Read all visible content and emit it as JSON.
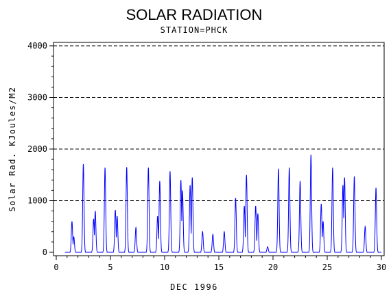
{
  "chart_data": {
    "type": "line",
    "title": "SOLAR RADIATION",
    "subtitle": "STATION=PHCK",
    "xlabel": "DEC 1996",
    "ylabel": "Solar Rad. KJoules/M2",
    "xlim": [
      0,
      30
    ],
    "ylim": [
      0,
      4000
    ],
    "x_ticks": [
      0,
      5,
      10,
      15,
      20,
      25,
      30
    ],
    "x_tick_labels": [
      "0",
      "5",
      "10",
      "15",
      "20",
      "25",
      "30"
    ],
    "y_ticks": [
      0,
      1000,
      2000,
      3000,
      4000
    ],
    "y_tick_labels": [
      "0",
      "1000",
      "2000",
      "3000",
      "4000"
    ],
    "gridlines_y": [
      1000,
      2000,
      3000,
      4000
    ],
    "grid": "dashed horizontal",
    "series": [
      {
        "color": "#0000ff",
        "daily_peaks": [
          {
            "day": 1,
            "peaks": [
              [
                1.45,
                600
              ],
              [
                1.62,
                300
              ]
            ]
          },
          {
            "day": 2,
            "peaks": [
              [
                2.5,
                1710
              ]
            ]
          },
          {
            "day": 3,
            "peaks": [
              [
                3.45,
                650
              ],
              [
                3.6,
                800
              ]
            ]
          },
          {
            "day": 4,
            "peaks": [
              [
                4.5,
                1640
              ]
            ]
          },
          {
            "day": 5,
            "peaks": [
              [
                5.45,
                820
              ],
              [
                5.62,
                700
              ]
            ]
          },
          {
            "day": 6,
            "peaks": [
              [
                6.5,
                1650
              ]
            ]
          },
          {
            "day": 7,
            "peaks": [
              [
                7.35,
                480
              ]
            ]
          },
          {
            "day": 8,
            "peaks": [
              [
                8.5,
                1640
              ]
            ]
          },
          {
            "day": 9,
            "peaks": [
              [
                9.35,
                700
              ],
              [
                9.55,
                1380
              ]
            ]
          },
          {
            "day": 10,
            "peaks": [
              [
                10.5,
                1570
              ]
            ]
          },
          {
            "day": 11,
            "peaks": [
              [
                11.5,
                1400
              ],
              [
                11.65,
                1200
              ]
            ]
          },
          {
            "day": 12,
            "peaks": [
              [
                12.35,
                1300
              ],
              [
                12.55,
                1450
              ]
            ]
          },
          {
            "day": 13,
            "peaks": [
              [
                13.5,
                400
              ]
            ]
          },
          {
            "day": 14,
            "peaks": [
              [
                14.45,
                350
              ]
            ]
          },
          {
            "day": 15,
            "peaks": [
              [
                15.5,
                400
              ]
            ]
          },
          {
            "day": 16,
            "peaks": [
              [
                16.55,
                1050
              ]
            ]
          },
          {
            "day": 17,
            "peaks": [
              [
                17.35,
                900
              ],
              [
                17.55,
                1500
              ]
            ]
          },
          {
            "day": 18,
            "peaks": [
              [
                18.4,
                900
              ],
              [
                18.6,
                750
              ]
            ]
          },
          {
            "day": 19,
            "peaks": [
              [
                19.5,
                110
              ]
            ]
          },
          {
            "day": 20,
            "peaks": [
              [
                20.5,
                1620
              ]
            ]
          },
          {
            "day": 21,
            "peaks": [
              [
                21.5,
                1640
              ]
            ]
          },
          {
            "day": 22,
            "peaks": [
              [
                22.5,
                1380
              ]
            ]
          },
          {
            "day": 23,
            "peaks": [
              [
                23.5,
                1890
              ]
            ]
          },
          {
            "day": 24,
            "peaks": [
              [
                24.45,
                940
              ],
              [
                24.62,
                600
              ]
            ]
          },
          {
            "day": 25,
            "peaks": [
              [
                25.5,
                1640
              ]
            ]
          },
          {
            "day": 26,
            "peaks": [
              [
                26.45,
                1300
              ],
              [
                26.6,
                1450
              ]
            ]
          },
          {
            "day": 27,
            "peaks": [
              [
                27.5,
                1470
              ]
            ]
          },
          {
            "day": 28,
            "peaks": [
              [
                28.5,
                500
              ]
            ]
          },
          {
            "day": 29,
            "peaks": [
              [
                29.5,
                1250
              ]
            ]
          }
        ]
      }
    ]
  }
}
